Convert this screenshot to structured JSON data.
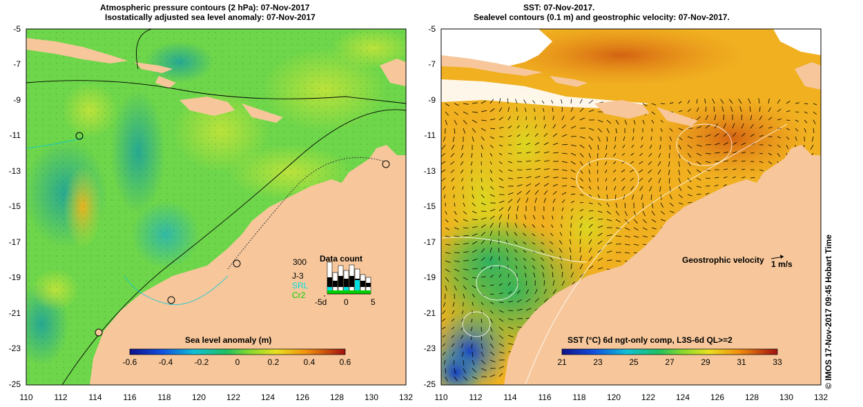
{
  "left_panel": {
    "title_line1": "Atmospheric pressure contours (2 hPa): 07-Nov-2017",
    "title_line2": "Isostatically adjusted sea level anomaly: 07-Nov-2017",
    "colorbar_label": "Sea level anomaly (m)",
    "colorbar_ticks": [
      "-0.6",
      "-0.4",
      "-0.2",
      "0",
      "0.2",
      "0.4",
      "0.6"
    ],
    "data_count": {
      "title": "Data count",
      "max_label": "300",
      "series": [
        {
          "name": "J-3",
          "color": "#000000"
        },
        {
          "name": "SRL",
          "color": "#00e0e0"
        },
        {
          "name": "Cr2",
          "color": "#00d000"
        }
      ],
      "x_labels": [
        "-5d",
        "0",
        "5"
      ]
    }
  },
  "right_panel": {
    "title_line1": "SST: 07-Nov-2017.",
    "title_line2": "Sealevel contours (0.1 m) and geostrophic velocity: 07-Nov-2017.",
    "velocity_label": "Geostrophic velocity",
    "velocity_scale": "1 m/s",
    "colorbar_label": "SST (°C) 6d ngt-only comp, L3S-6d QL>=2",
    "colorbar_ticks": [
      "21",
      "23",
      "25",
      "27",
      "29",
      "31",
      "33"
    ]
  },
  "axes": {
    "y_ticks": [
      "-5",
      "-7",
      "-9",
      "-11",
      "-13",
      "-15",
      "-17",
      "-19",
      "-21",
      "-23",
      "-25"
    ],
    "x_ticks": [
      "110",
      "112",
      "114",
      "116",
      "118",
      "120",
      "122",
      "124",
      "126",
      "128",
      "130",
      "132"
    ]
  },
  "credit": "© IMOS 17-Nov-2017 09:45 Hobart Time",
  "colors": {
    "land": "#f7c79b",
    "sla_base": "#6ed64a",
    "sst_base": "#f0b020",
    "contour": "#000000"
  }
}
